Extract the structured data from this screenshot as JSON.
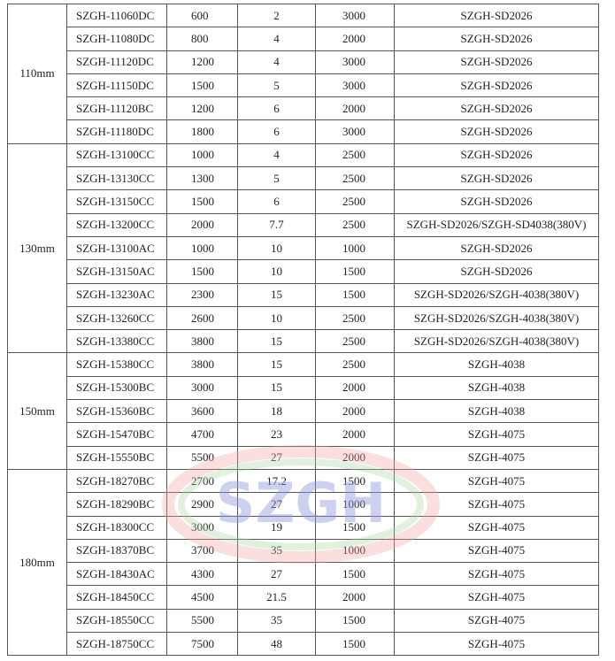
{
  "watermark": "SZGH",
  "table": {
    "groups": [
      {
        "label": "110mm",
        "rows": [
          [
            "SZGH-11060DC",
            "600",
            "2",
            "3000",
            "SZGH-SD2026"
          ],
          [
            "SZGH-11080DC",
            "800",
            "4",
            "2000",
            "SZGH-SD2026"
          ],
          [
            "SZGH-11120DC",
            "1200",
            "4",
            "3000",
            "SZGH-SD2026"
          ],
          [
            "SZGH-11150DC",
            "1500",
            "5",
            "3000",
            "SZGH-SD2026"
          ],
          [
            "SZGH-11120BC",
            "1200",
            "6",
            "2000",
            "SZGH-SD2026"
          ],
          [
            "SZGH-11180DC",
            "1800",
            "6",
            "3000",
            "SZGH-SD2026"
          ]
        ]
      },
      {
        "label": "130mm",
        "rows": [
          [
            "SZGH-13100CC",
            "1000",
            "4",
            "2500",
            "SZGH-SD2026"
          ],
          [
            "SZGH-13130CC",
            "1300",
            "5",
            "2500",
            "SZGH-SD2026"
          ],
          [
            "SZGH-13150CC",
            "1500",
            "6",
            "2500",
            "SZGH-SD2026"
          ],
          [
            "SZGH-13200CC",
            "2000",
            "7.7",
            "2500",
            "SZGH-SD2026/SZGH-SD4038(380V)"
          ],
          [
            "SZGH-13100AC",
            "1000",
            "10",
            "1000",
            "SZGH-SD2026"
          ],
          [
            "SZGH-13150AC",
            "1500",
            "10",
            "1500",
            "SZGH-SD2026"
          ],
          [
            "SZGH-13230AC",
            "2300",
            "15",
            "1500",
            "SZGH-SD2026/SZGH-4038(380V)"
          ],
          [
            "SZGH-13260CC",
            "2600",
            "10",
            "2500",
            "SZGH-SD2026/SZGH-4038(380V)"
          ],
          [
            "SZGH-13380CC",
            "3800",
            "15",
            "2500",
            "SZGH-SD2026/SZGH-4038(380V)"
          ]
        ]
      },
      {
        "label": "150mm",
        "rows": [
          [
            "SZGH-15380CC",
            "3800",
            "15",
            "2500",
            "SZGH-4038"
          ],
          [
            "SZGH-15300BC",
            "3000",
            "15",
            "2000",
            "SZGH-4038"
          ],
          [
            "SZGH-15360BC",
            "3600",
            "18",
            "2000",
            "SZGH-4038"
          ],
          [
            "SZGH-15470BC",
            "4700",
            "23",
            "2000",
            "SZGH-4075"
          ],
          [
            "SZGH-15550BC",
            "5500",
            "27",
            "2000",
            "SZGH-4075"
          ]
        ]
      },
      {
        "label": "180mm",
        "rows": [
          [
            "SZGH-18270BC",
            "2700",
            "17.2",
            "1500",
            "SZGH-4075"
          ],
          [
            "SZGH-18290BC",
            "2900",
            "27",
            "1000",
            "SZGH-4075"
          ],
          [
            "SZGH-18300CC",
            "3000",
            "19",
            "1500",
            "SZGH-4075"
          ],
          [
            "SZGH-18370BC",
            "3700",
            "35",
            "1000",
            "SZGH-4075"
          ],
          [
            "SZGH-18430AC",
            "4300",
            "27",
            "1500",
            "SZGH-4075"
          ],
          [
            "SZGH-18450CC",
            "4500",
            "21.5",
            "2000",
            "SZGH-4075"
          ],
          [
            "SZGH-18550CC",
            "5500",
            "35",
            "1500",
            "SZGH-4075"
          ],
          [
            "SZGH-18750CC",
            "7500",
            "48",
            "1500",
            "SZGH-4075"
          ]
        ]
      }
    ]
  }
}
